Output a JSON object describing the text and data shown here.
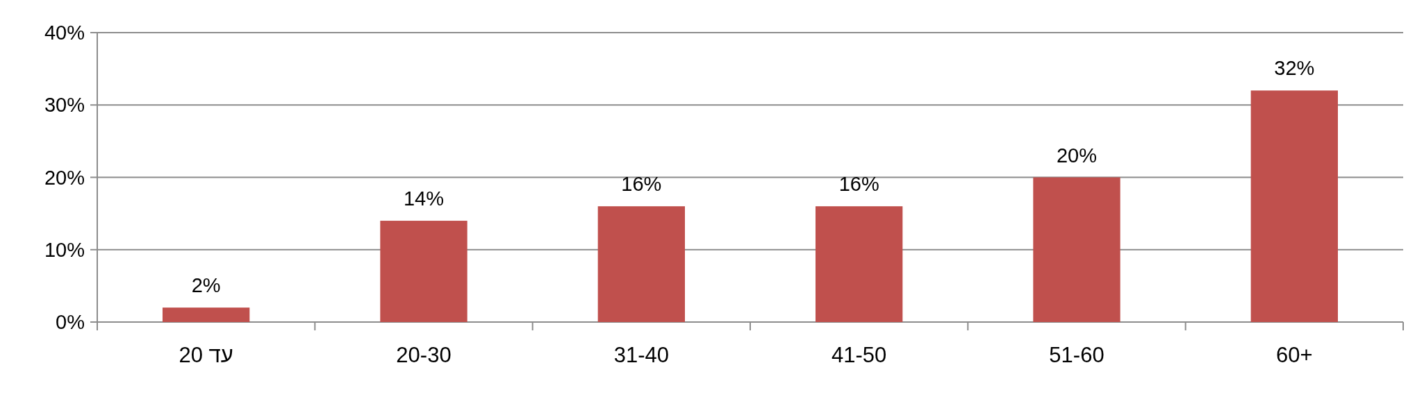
{
  "chart_data": {
    "type": "bar",
    "categories": [
      "עד 20",
      "20-30",
      "31-40",
      "41-50",
      "51-60",
      "60+"
    ],
    "values": [
      2,
      14,
      16,
      16,
      20,
      32
    ],
    "value_labels": [
      "2%",
      "14%",
      "16%",
      "16%",
      "20%",
      "32%"
    ],
    "color": "#c0504d",
    "grid": "y",
    "ylim": [
      0,
      40
    ],
    "yticks": [
      {
        "value": 0,
        "label": "0%"
      },
      {
        "value": 10,
        "label": "10%"
      },
      {
        "value": 20,
        "label": "20%"
      },
      {
        "value": 30,
        "label": "30%"
      },
      {
        "value": 40,
        "label": "40%"
      }
    ]
  }
}
